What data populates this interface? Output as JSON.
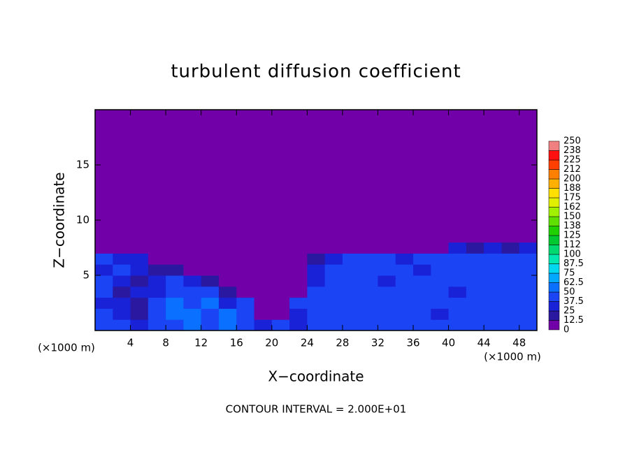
{
  "chart_data": {
    "type": "heatmap",
    "title": "turbulent diffusion coefficient",
    "x_label": "X−coordinate",
    "y_label": "Z−coordinate",
    "x_unit": "(×1000 m)",
    "y_unit": "(×1000 m)",
    "footer": "CONTOUR INTERVAL = 2.000E+01",
    "xlim": [
      0,
      50
    ],
    "ylim": [
      0,
      20
    ],
    "xticks": [
      4,
      8,
      12,
      16,
      20,
      24,
      28,
      32,
      36,
      40,
      44,
      48
    ],
    "yticks": [
      5,
      10,
      15
    ],
    "x_edges": [
      0,
      2,
      4,
      6,
      8,
      10,
      12,
      14,
      16,
      18,
      20,
      22,
      24,
      26,
      28,
      30,
      32,
      34,
      36,
      38,
      40,
      42,
      44,
      46,
      48,
      50
    ],
    "y_edges": [
      0,
      1,
      2,
      3,
      4,
      5,
      6,
      7,
      8,
      20
    ],
    "z": [
      [
        40,
        40,
        30,
        45,
        40,
        55,
        40,
        50,
        45,
        30,
        40,
        35,
        40,
        40,
        45,
        40,
        40,
        45,
        40,
        40,
        45,
        40,
        45,
        40,
        40
      ],
      [
        40,
        35,
        20,
        40,
        50,
        60,
        45,
        55,
        40,
        10,
        5,
        35,
        40,
        45,
        40,
        40,
        45,
        40,
        45,
        35,
        40,
        45,
        40,
        45,
        40
      ],
      [
        35,
        30,
        15,
        40,
        55,
        40,
        50,
        30,
        45,
        5,
        5,
        40,
        40,
        40,
        40,
        45,
        40,
        45,
        40,
        40,
        45,
        40,
        45,
        40,
        40
      ],
      [
        40,
        15,
        25,
        35,
        40,
        40,
        45,
        20,
        10,
        5,
        5,
        10,
        40,
        40,
        40,
        40,
        40,
        40,
        40,
        40,
        35,
        40,
        40,
        40,
        40
      ],
      [
        40,
        35,
        20,
        30,
        40,
        25,
        15,
        5,
        5,
        5,
        5,
        5,
        35,
        40,
        40,
        40,
        35,
        40,
        40,
        40,
        45,
        40,
        40,
        40,
        40
      ],
      [
        35,
        40,
        30,
        20,
        15,
        5,
        5,
        5,
        5,
        5,
        5,
        5,
        30,
        40,
        40,
        40,
        40,
        40,
        35,
        40,
        40,
        40,
        40,
        40,
        40
      ],
      [
        40,
        35,
        25,
        10,
        5,
        5,
        5,
        5,
        5,
        5,
        5,
        5,
        20,
        25,
        40,
        40,
        40,
        30,
        40,
        40,
        40,
        40,
        40,
        40,
        40
      ],
      [
        10,
        5,
        5,
        5,
        5,
        5,
        5,
        5,
        5,
        5,
        5,
        5,
        5,
        5,
        5,
        5,
        5,
        5,
        10,
        10,
        25,
        20,
        30,
        20,
        35
      ],
      [
        0,
        0,
        0,
        0,
        0,
        0,
        0,
        0,
        0,
        0,
        0,
        0,
        0,
        0,
        0,
        0,
        0,
        0,
        0,
        0,
        0,
        0,
        0,
        0,
        0
      ]
    ],
    "levels": [
      0,
      12.5,
      25,
      37.5,
      50,
      62.5,
      75,
      87.5,
      100,
      112,
      125,
      138,
      150,
      162,
      175,
      188,
      200,
      212,
      225,
      238,
      250
    ],
    "colors": [
      "#7200a8",
      "#2a18a0",
      "#1a22d8",
      "#1a44f4",
      "#0a70ff",
      "#00a8ff",
      "#00d8f0",
      "#00e8b0",
      "#00d870",
      "#00c830",
      "#20d000",
      "#60e000",
      "#a0f000",
      "#e0f000",
      "#ffe000",
      "#ffb000",
      "#ff8000",
      "#ff4000",
      "#ff1010",
      "#f08080"
    ]
  }
}
